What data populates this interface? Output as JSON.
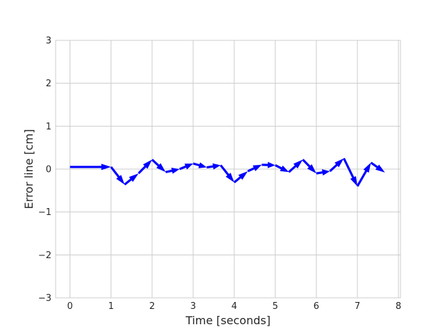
{
  "chart_data": {
    "type": "line",
    "xlabel": "Time [seconds]",
    "ylabel": "Error line [cm]",
    "xlim": [
      -0.35,
      8.05
    ],
    "ylim": [
      -3,
      3
    ],
    "xticks": [
      0,
      1,
      2,
      3,
      4,
      5,
      6,
      7,
      8
    ],
    "yticks": [
      -3,
      -2,
      -1,
      0,
      1,
      2,
      3
    ],
    "ytick_labels": [
      "−3",
      "−2",
      "−1",
      "0",
      "1",
      "2",
      "3"
    ],
    "grid": true,
    "series": [
      {
        "color": "#0000ff",
        "marker": "arrow",
        "x": [
          0,
          1.0,
          1.33,
          1.67,
          2.0,
          2.33,
          2.67,
          3.0,
          3.33,
          3.67,
          4.0,
          4.33,
          4.67,
          5.0,
          5.33,
          5.67,
          6.0,
          6.33,
          6.67,
          7.0,
          7.33,
          7.67
        ],
        "y": [
          0.05,
          0.05,
          -0.36,
          -0.1,
          0.22,
          -0.07,
          0.0,
          0.13,
          0.04,
          0.09,
          -0.31,
          -0.05,
          0.1,
          0.09,
          -0.07,
          0.22,
          -0.1,
          -0.05,
          0.25,
          -0.4,
          0.15,
          -0.08
        ]
      }
    ]
  }
}
